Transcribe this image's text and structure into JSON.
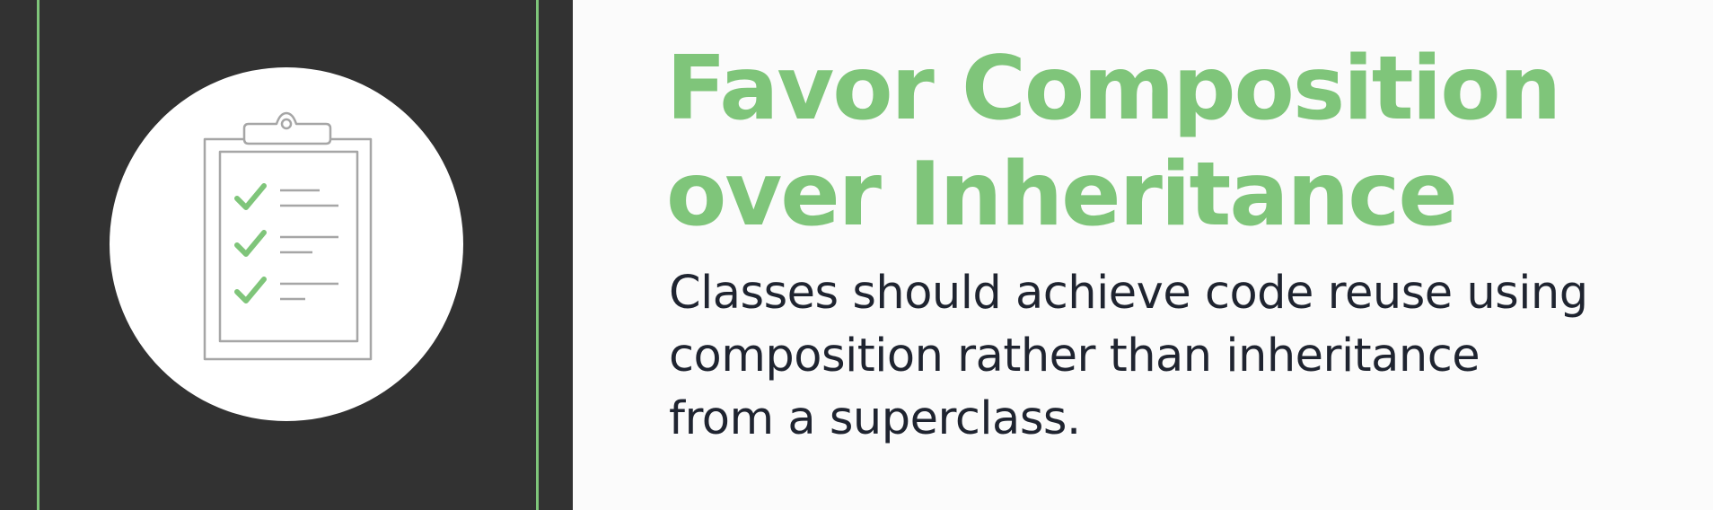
{
  "slide": {
    "title_lines": [
      "Favor Composition",
      "over Inheritance"
    ],
    "body_lines": [
      "Classes should achieve code reuse using",
      "composition rather than inheritance",
      "from a superclass."
    ],
    "icon": "clipboard-checklist-icon"
  },
  "colors": {
    "accent": "#7fc57a",
    "panel": "#323232",
    "text": "#1f2430",
    "background": "#fbfbfb"
  }
}
